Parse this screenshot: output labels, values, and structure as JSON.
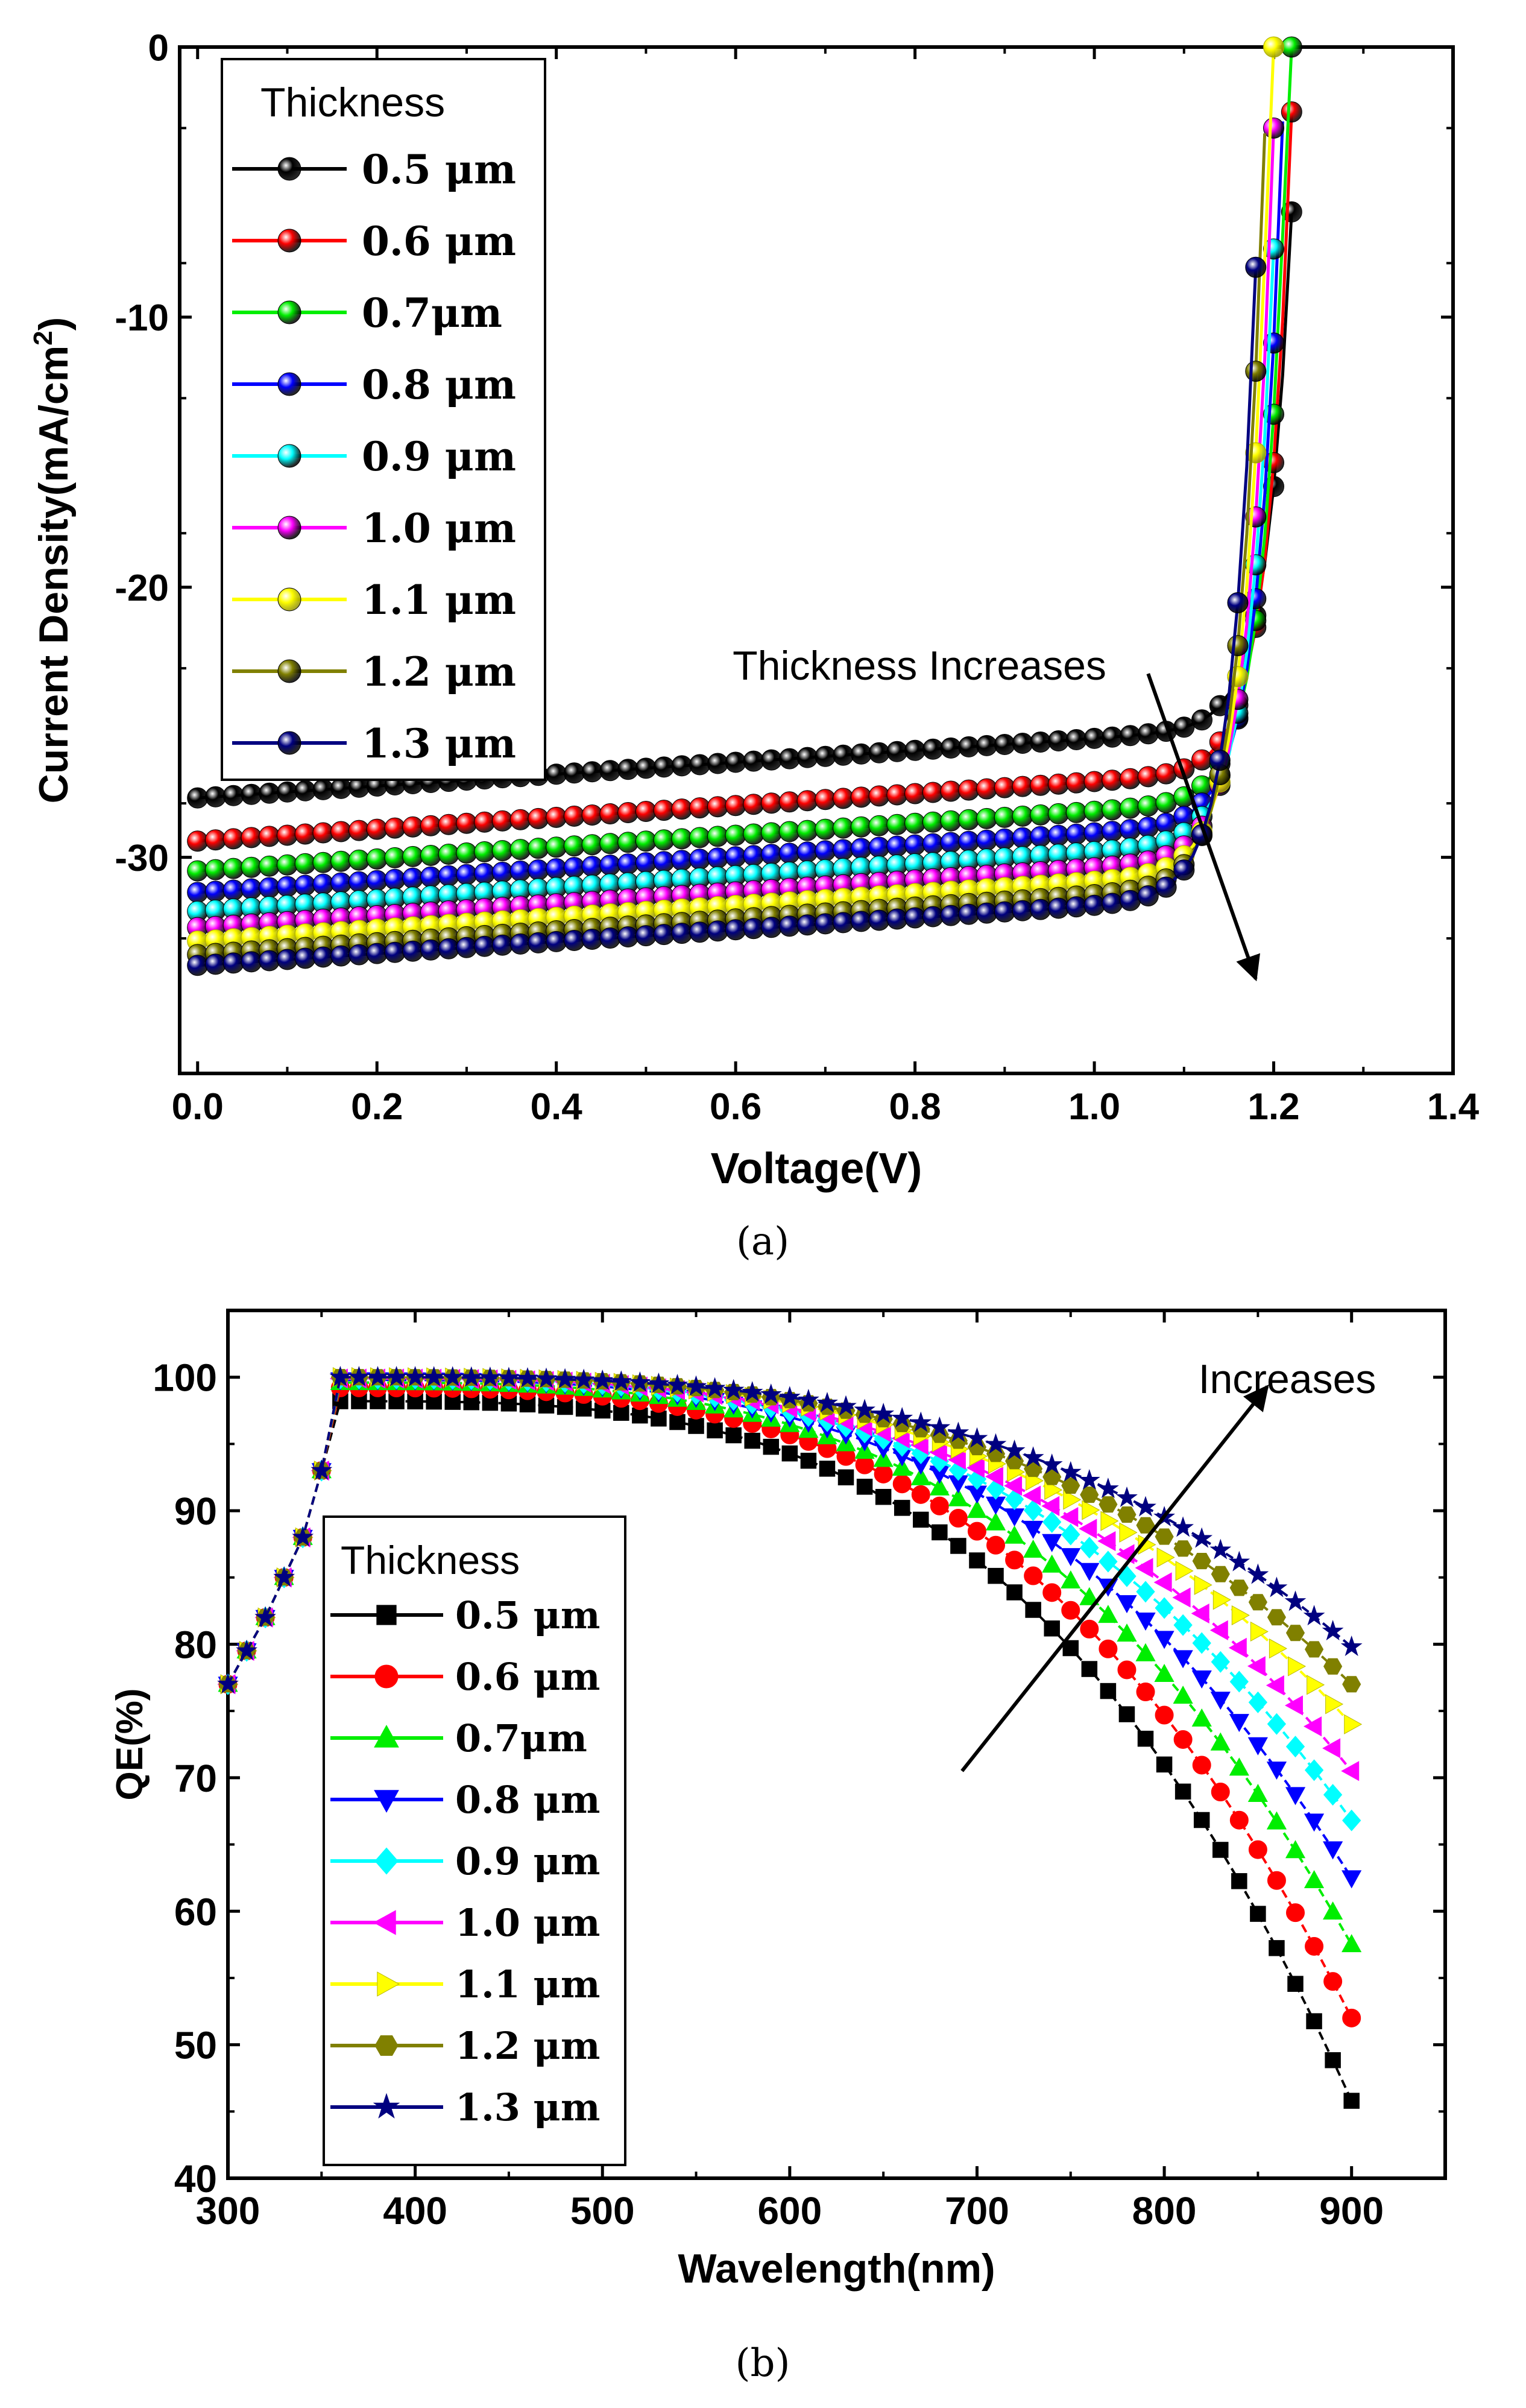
{
  "chart_data": [
    {
      "id": "a",
      "type": "line",
      "markers": "sphere",
      "caption": "(a)",
      "xlabel": "Voltage(V)",
      "ylabel": "Current Density(mA/cm2)",
      "ylabel_main": "Current Density(mA/cm",
      "ylabel_sup": "2",
      "ylabel_tail": ")",
      "xlim": [
        -0.02,
        1.4
      ],
      "ylim": [
        -38,
        0
      ],
      "xticks": [
        0.0,
        0.2,
        0.4,
        0.6,
        0.8,
        1.0,
        1.2,
        1.4
      ],
      "xtick_labels": [
        "0.0",
        "0.2",
        "0.4",
        "0.6",
        "0.8",
        "1.0",
        "1.2",
        "1.4"
      ],
      "yticks": [
        0,
        -10,
        -20,
        -30
      ],
      "ytick_labels": [
        "0",
        "-10",
        "-20",
        "-30"
      ],
      "legend_title": "Thickness",
      "legend_position": "top-left",
      "annotation": {
        "text": "Thickness Increases",
        "arrow_from": [
          1.06,
          -23.2
        ],
        "arrow_to": [
          1.18,
          -34.5
        ]
      },
      "series": [
        {
          "name": "0.5 μm",
          "color": "#000000",
          "jsc": -27.8,
          "voc": 1.23
        },
        {
          "name": "0.6 μm",
          "color": "#ff0000",
          "jsc": -29.4,
          "voc": 1.225
        },
        {
          "name": "0.7μm",
          "color": "#00ee00",
          "jsc": -30.5,
          "voc": 1.22
        },
        {
          "name": "0.8 μm",
          "color": "#0000ff",
          "jsc": -31.3,
          "voc": 1.215
        },
        {
          "name": "0.9 μm",
          "color": "#00ffff",
          "jsc": -32.0,
          "voc": 1.21
        },
        {
          "name": "1.0 μm",
          "color": "#ff00ff",
          "jsc": -32.6,
          "voc": 1.205
        },
        {
          "name": "1.1 μm",
          "color": "#ffff00",
          "jsc": -33.1,
          "voc": 1.2
        },
        {
          "name": "1.2 μm",
          "color": "#808000",
          "jsc": -33.6,
          "voc": 1.195
        },
        {
          "name": "1.3 μm",
          "color": "#000080",
          "jsc": -34.0,
          "voc": 1.19
        }
      ]
    },
    {
      "id": "b",
      "type": "line",
      "markers": "symbols",
      "caption": "(b)",
      "xlabel": "Wavelength(nm)",
      "ylabel": "QE(%)",
      "xlim": [
        300,
        950
      ],
      "ylim": [
        40,
        105
      ],
      "xticks": [
        300,
        400,
        500,
        600,
        700,
        800,
        900
      ],
      "xtick_labels": [
        "300",
        "400",
        "500",
        "600",
        "700",
        "800",
        "900"
      ],
      "yticks": [
        40,
        50,
        60,
        70,
        80,
        90,
        100
      ],
      "ytick_labels": [
        "40",
        "50",
        "60",
        "70",
        "80",
        "90",
        "100"
      ],
      "legend_title": "Thickness",
      "legend_position": "bottom-left",
      "annotation": {
        "text": "Increases",
        "arrow_from": [
          692,
          70.5
        ],
        "arrow_to": [
          855,
          99.3
        ]
      },
      "rising_edge": {
        "x": [
          300,
          310,
          320,
          330,
          340,
          350,
          360
        ],
        "y": [
          77,
          79.5,
          82,
          85,
          88,
          93,
          99
        ]
      },
      "series": [
        {
          "name": "0.5 μm",
          "color": "#000000",
          "marker": "square",
          "at_360": 98.2,
          "at_900": 45.8
        },
        {
          "name": "0.6 μm",
          "color": "#ff0000",
          "marker": "circle",
          "at_360": 99.2,
          "at_900": 52.0
        },
        {
          "name": "0.7μm",
          "color": "#00ee00",
          "marker": "triangle-up",
          "at_360": 99.6,
          "at_900": 57.5
        },
        {
          "name": "0.8 μm",
          "color": "#0000ff",
          "marker": "triangle-down",
          "at_360": 99.8,
          "at_900": 62.5
        },
        {
          "name": "0.9 μm",
          "color": "#00ffff",
          "marker": "diamond",
          "at_360": 99.9,
          "at_900": 66.8
        },
        {
          "name": "1.0 μm",
          "color": "#ff00ff",
          "marker": "triangle-left",
          "at_360": 99.9,
          "at_900": 70.5
        },
        {
          "name": "1.1 μm",
          "color": "#ffff00",
          "marker": "triangle-right",
          "at_360": 100.0,
          "at_900": 74.0
        },
        {
          "name": "1.2 μm",
          "color": "#808000",
          "marker": "hexagon",
          "at_360": 100.0,
          "at_900": 77.0
        },
        {
          "name": "1.3 μm",
          "color": "#000080",
          "marker": "star",
          "at_360": 100.0,
          "at_900": 79.8
        }
      ]
    }
  ]
}
